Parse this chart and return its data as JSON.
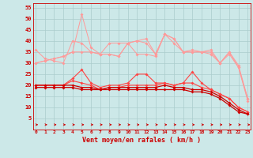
{
  "x": [
    0,
    1,
    2,
    3,
    4,
    5,
    6,
    7,
    8,
    9,
    10,
    11,
    12,
    13,
    14,
    15,
    16,
    17,
    18,
    19,
    20,
    21,
    22,
    23
  ],
  "line1": [
    30,
    31,
    32,
    33,
    35,
    52,
    37,
    34,
    34,
    33,
    39,
    40,
    41,
    34,
    43,
    41,
    35,
    36,
    35,
    36,
    30,
    35,
    29,
    14
  ],
  "line2": [
    36,
    32,
    31,
    30,
    40,
    39,
    35,
    34,
    39,
    39,
    39,
    34,
    34,
    33,
    43,
    39,
    35,
    35,
    35,
    34,
    30,
    35,
    28,
    14
  ],
  "line3": [
    30,
    31,
    32,
    33,
    35,
    35,
    35,
    34,
    34,
    33,
    39,
    40,
    39,
    34,
    43,
    41,
    35,
    35,
    35,
    35,
    30,
    34,
    28,
    13
  ],
  "line4": [
    20,
    20,
    20,
    20,
    23,
    27,
    21,
    19,
    20,
    20,
    21,
    25,
    25,
    21,
    21,
    20,
    21,
    26,
    21,
    18,
    16,
    14,
    10,
    8
  ],
  "line5": [
    20,
    20,
    20,
    20,
    22,
    21,
    20,
    18,
    19,
    19,
    20,
    20,
    20,
    20,
    21,
    20,
    21,
    21,
    19,
    18,
    16,
    14,
    10,
    8
  ],
  "line6": [
    20,
    20,
    20,
    20,
    20,
    19,
    19,
    18,
    19,
    19,
    19,
    19,
    19,
    19,
    20,
    19,
    19,
    18,
    18,
    17,
    15,
    12,
    9,
    7
  ],
  "line7": [
    19,
    19,
    19,
    19,
    19,
    18,
    18,
    18,
    18,
    18,
    18,
    18,
    18,
    18,
    18,
    18,
    18,
    17,
    17,
    16,
    14,
    11,
    8,
    7
  ],
  "bg_color": "#cce8e8",
  "grid_color": "#aacccc",
  "line_color_light": "#ff9999",
  "line_color_medium": "#ff4444",
  "line_color_dark": "#cc0000",
  "yticks": [
    5,
    10,
    15,
    20,
    25,
    30,
    35,
    40,
    45,
    50,
    55
  ],
  "ylim": [
    0,
    57
  ],
  "xlim": [
    -0.3,
    23.3
  ],
  "xlabel": "Vent moyen/en rafales ( km/h )"
}
